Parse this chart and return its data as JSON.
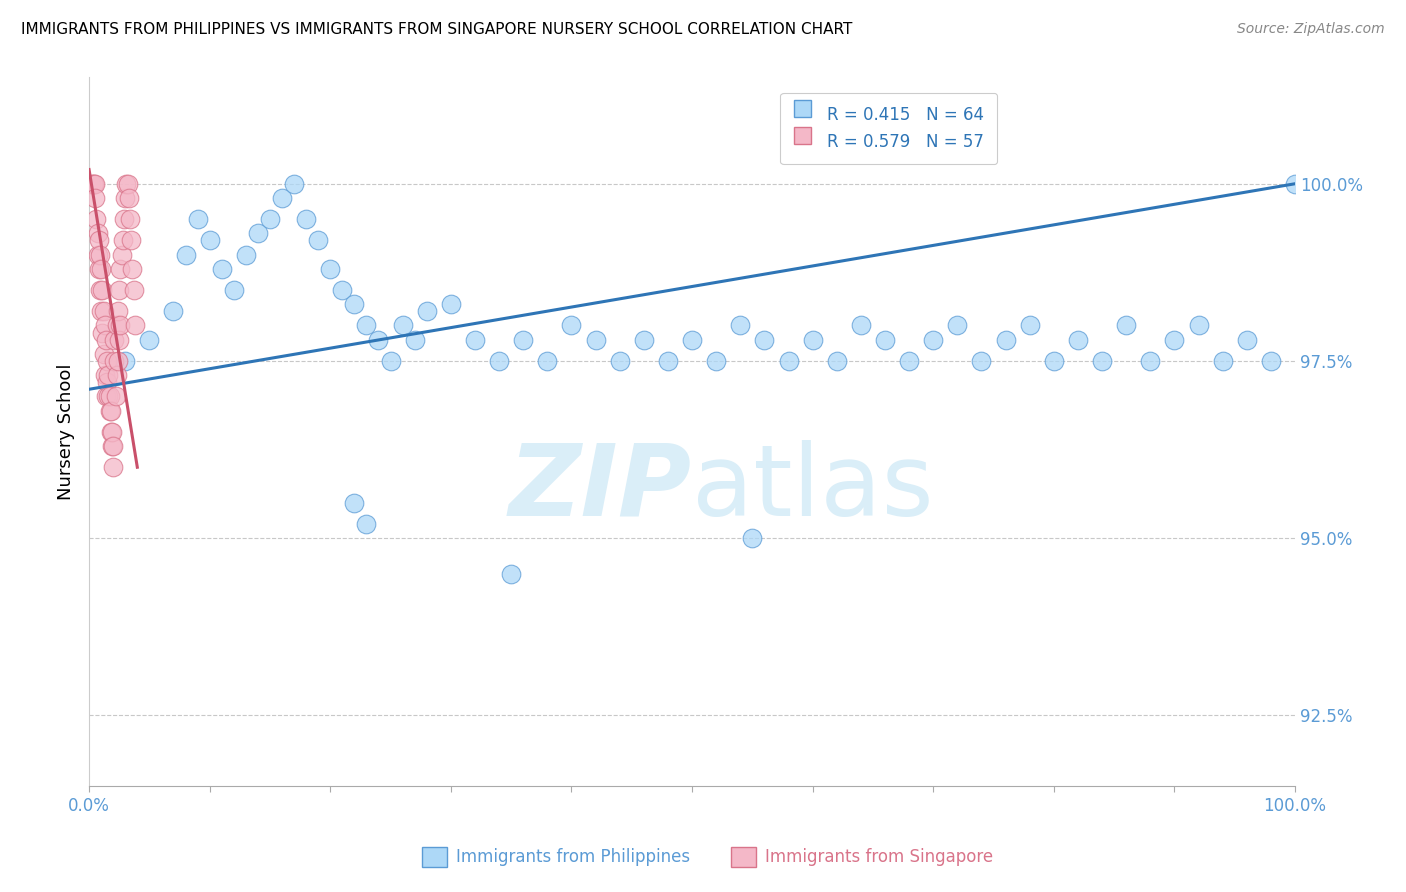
{
  "title": "IMMIGRANTS FROM PHILIPPINES VS IMMIGRANTS FROM SINGAPORE NURSERY SCHOOL CORRELATION CHART",
  "source": "Source: ZipAtlas.com",
  "ylabel": "Nursery School",
  "xlim": [
    0.0,
    100.0
  ],
  "ylim": [
    91.5,
    101.5
  ],
  "ytick_vals": [
    92.5,
    95.0,
    97.5,
    100.0
  ],
  "ytick_labels": [
    "92.5%",
    "95.0%",
    "97.5%",
    "100.0%"
  ],
  "xtick_vals": [
    0,
    10,
    20,
    30,
    40,
    50,
    60,
    70,
    80,
    90,
    100
  ],
  "scatter_philippines": {
    "color": "#add8f7",
    "edgecolor": "#5b9bd5",
    "x": [
      3,
      5,
      7,
      8,
      9,
      10,
      11,
      12,
      13,
      14,
      15,
      16,
      17,
      18,
      19,
      20,
      21,
      22,
      23,
      24,
      25,
      26,
      27,
      28,
      30,
      32,
      34,
      36,
      38,
      40,
      42,
      44,
      46,
      48,
      50,
      52,
      54,
      56,
      58,
      60,
      62,
      64,
      66,
      68,
      70,
      72,
      74,
      76,
      78,
      80,
      82,
      84,
      86,
      88,
      90,
      92,
      94,
      96,
      98,
      100,
      22,
      23,
      35,
      55
    ],
    "y": [
      97.5,
      97.8,
      98.2,
      99.0,
      99.5,
      99.2,
      98.8,
      98.5,
      99.0,
      99.3,
      99.5,
      99.8,
      100.0,
      99.5,
      99.2,
      98.8,
      98.5,
      98.3,
      98.0,
      97.8,
      97.5,
      98.0,
      97.8,
      98.2,
      98.3,
      97.8,
      97.5,
      97.8,
      97.5,
      98.0,
      97.8,
      97.5,
      97.8,
      97.5,
      97.8,
      97.5,
      98.0,
      97.8,
      97.5,
      97.8,
      97.5,
      98.0,
      97.8,
      97.5,
      97.8,
      98.0,
      97.5,
      97.8,
      98.0,
      97.5,
      97.8,
      97.5,
      98.0,
      97.5,
      97.8,
      98.0,
      97.5,
      97.8,
      97.5,
      100.0,
      95.5,
      95.2,
      94.5,
      95.0
    ]
  },
  "scatter_singapore": {
    "color": "#f4b8c8",
    "edgecolor": "#d9748a",
    "x": [
      0.2,
      0.3,
      0.4,
      0.5,
      0.5,
      0.6,
      0.7,
      0.7,
      0.8,
      0.8,
      0.9,
      0.9,
      1.0,
      1.0,
      1.1,
      1.1,
      1.2,
      1.2,
      1.3,
      1.3,
      1.4,
      1.4,
      1.5,
      1.5,
      1.6,
      1.6,
      1.7,
      1.7,
      1.8,
      1.8,
      1.9,
      1.9,
      2.0,
      2.0,
      2.1,
      2.1,
      2.2,
      2.3,
      2.3,
      2.4,
      2.4,
      2.5,
      2.5,
      2.6,
      2.6,
      2.7,
      2.8,
      2.9,
      3.0,
      3.1,
      3.2,
      3.3,
      3.4,
      3.5,
      3.6,
      3.7,
      3.8
    ],
    "y": [
      100.0,
      100.0,
      100.0,
      100.0,
      99.8,
      99.5,
      99.3,
      99.0,
      98.8,
      99.2,
      98.5,
      99.0,
      98.2,
      98.8,
      97.9,
      98.5,
      97.6,
      98.2,
      97.3,
      98.0,
      97.0,
      97.8,
      97.2,
      97.5,
      97.0,
      97.3,
      96.8,
      97.0,
      96.5,
      96.8,
      96.3,
      96.5,
      96.0,
      96.3,
      97.5,
      97.8,
      97.0,
      98.0,
      97.3,
      98.2,
      97.5,
      98.5,
      97.8,
      98.8,
      98.0,
      99.0,
      99.2,
      99.5,
      99.8,
      100.0,
      100.0,
      99.8,
      99.5,
      99.2,
      98.8,
      98.5,
      98.0
    ]
  },
  "trendline_philippines": {
    "color": "#2e75b6",
    "x_start": 0.0,
    "y_start": 97.1,
    "x_end": 100.0,
    "y_end": 100.0
  },
  "trendline_singapore": {
    "color": "#c9506a",
    "x_start": 0.0,
    "y_start": 100.2,
    "x_end": 4.0,
    "y_end": 96.0
  },
  "legend_r1": "R = 0.415   N = 64",
  "legend_r2": "R = 0.579   N = 57",
  "legend_color1": "#add8f7",
  "legend_color2": "#f4b8c8",
  "legend_edge1": "#5b9bd5",
  "legend_edge2": "#d9748a",
  "legend_text_color": "#2e75b6",
  "watermark_zip": "ZIP",
  "watermark_atlas": "atlas",
  "watermark_color": "#daeef8",
  "axis_color": "#5b9bd5",
  "grid_color": "#c8c8c8",
  "background_color": "#ffffff",
  "title_fontsize": 11,
  "source_fontsize": 10,
  "legend_fontsize": 12,
  "bottom_label1": "Immigrants from Philippines",
  "bottom_label2": "Immigrants from Singapore",
  "bottom_label1_color": "#5b9bd5",
  "bottom_label2_color": "#d9748a"
}
